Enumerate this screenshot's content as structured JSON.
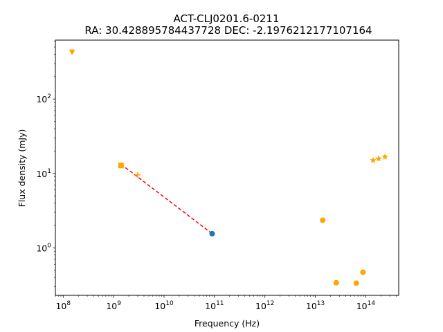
{
  "chart_data": {
    "type": "scatter",
    "title": "ACT-CLJ0201.6-0211",
    "subtitle": "RA: 30.428895784437728 DEC: -2.1976212177107164",
    "xlabel": "Frequency (Hz)",
    "ylabel": "Flux density (mJy)",
    "xscale": "log",
    "yscale": "log",
    "xlim": [
      70000000.0,
      450000000000000.0
    ],
    "ylim": [
      0.23,
      620
    ],
    "grid": false,
    "x_ticks": [
      {
        "base": "10",
        "exp": "8",
        "value": 100000000.0
      },
      {
        "base": "10",
        "exp": "9",
        "value": 1000000000.0
      },
      {
        "base": "10",
        "exp": "10",
        "value": 10000000000.0
      },
      {
        "base": "10",
        "exp": "11",
        "value": 100000000000.0
      },
      {
        "base": "10",
        "exp": "12",
        "value": 1000000000000.0
      },
      {
        "base": "10",
        "exp": "13",
        "value": 10000000000000.0
      },
      {
        "base": "10",
        "exp": "14",
        "value": 100000000000000.0
      }
    ],
    "y_ticks": [
      {
        "base": "10",
        "exp": "0",
        "value": 1
      },
      {
        "base": "10",
        "exp": "1",
        "value": 10
      },
      {
        "base": "10",
        "exp": "2",
        "value": 100
      }
    ],
    "series": [
      {
        "marker": "triangle-down",
        "color": "#ffa500",
        "points": [
          {
            "x": 150000000.0,
            "y": 430
          }
        ]
      },
      {
        "marker": "square",
        "color": "#ffa500",
        "points": [
          {
            "x": 1400000000.0,
            "y": 12.8
          }
        ]
      },
      {
        "marker": "plus",
        "color": "#ffa500",
        "points": [
          {
            "x": 3000000000.0,
            "y": 9.6
          }
        ]
      },
      {
        "marker": "circle",
        "color": "#1f77b4",
        "points": [
          {
            "x": 90000000000.0,
            "y": 1.55
          }
        ]
      },
      {
        "marker": "circle",
        "color": "#ffa500",
        "points": [
          {
            "x": 14000000000000.0,
            "y": 2.35
          },
          {
            "x": 26000000000000.0,
            "y": 0.34
          },
          {
            "x": 65000000000000.0,
            "y": 0.335
          },
          {
            "x": 88000000000000.0,
            "y": 0.47
          }
        ]
      },
      {
        "marker": "star",
        "color": "#ffa500",
        "points": [
          {
            "x": 140000000000000.0,
            "y": 15.0
          },
          {
            "x": 180000000000000.0,
            "y": 15.8
          },
          {
            "x": 240000000000000.0,
            "y": 16.7
          }
        ]
      }
    ],
    "fit_line": {
      "style": "dashed",
      "color": "#ff0000",
      "points": [
        {
          "x": 1400000000.0,
          "y": 13.3
        },
        {
          "x": 90000000000.0,
          "y": 1.55
        }
      ]
    }
  }
}
